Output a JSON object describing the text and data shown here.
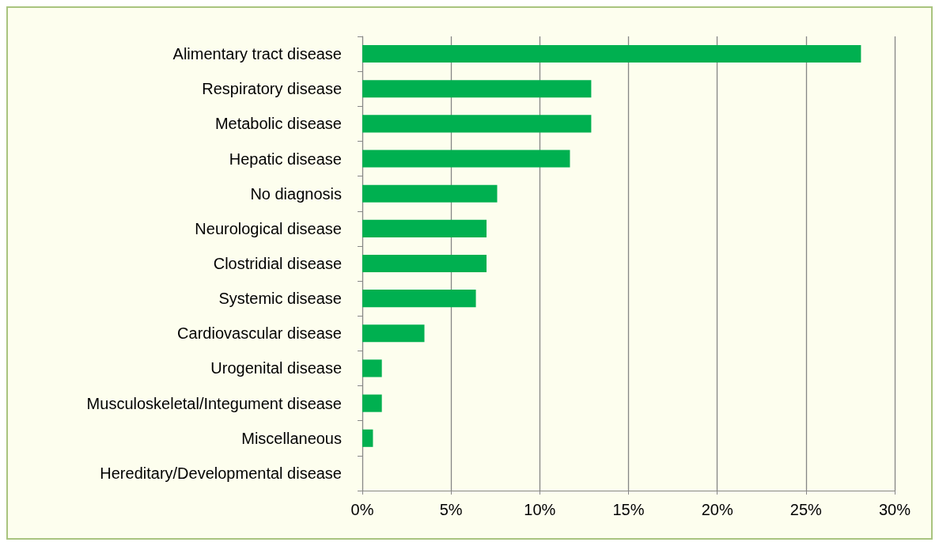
{
  "chart_data": {
    "type": "bar",
    "orientation": "horizontal",
    "categories": [
      "Alimentary tract disease",
      "Respiratory disease",
      "Metabolic disease",
      "Hepatic disease",
      "No diagnosis",
      "Neurological disease",
      "Clostridial disease",
      "Systemic disease",
      "Cardiovascular disease",
      "Urogenital disease",
      "Musculoskeletal/Integument disease",
      "Miscellaneous",
      "Hereditary/Developmental disease"
    ],
    "values": [
      28.1,
      12.9,
      12.9,
      11.7,
      7.6,
      7.0,
      7.0,
      6.4,
      3.5,
      1.1,
      1.1,
      0.6,
      0
    ],
    "color": "#00b050",
    "xlim": [
      0,
      30
    ],
    "xticks": [
      {
        "value": 0,
        "label": "0%"
      },
      {
        "value": 5,
        "label": "5%"
      },
      {
        "value": 10,
        "label": "10%"
      },
      {
        "value": 15,
        "label": "15%"
      },
      {
        "value": 20,
        "label": "20%"
      },
      {
        "value": 25,
        "label": "25%"
      },
      {
        "value": 30,
        "label": "30%"
      }
    ],
    "grid": "x"
  }
}
